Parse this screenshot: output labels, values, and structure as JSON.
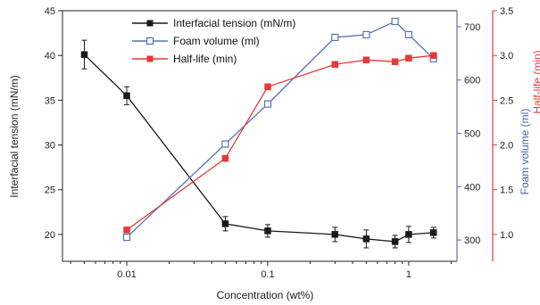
{
  "colors": {
    "interfacial": "#1a1a1a",
    "foam": "#5a72b6",
    "halflife": "#e53935"
  },
  "chart_data": {
    "type": "line",
    "xlabel": "Concentration (wt%)",
    "x_scale": "log",
    "xlim": [
      0.0035,
      2.2
    ],
    "x_ticks": [
      0.01,
      0.1,
      1
    ],
    "x_tick_labels": [
      "0.01",
      "0.1",
      "1"
    ],
    "axes": {
      "left": {
        "label": "Interfacial tension (mN/m)",
        "ylim": [
          17,
          45
        ],
        "ticks": [
          20,
          25,
          30,
          35,
          40,
          45
        ]
      },
      "right1": {
        "label": "Foam volume (ml)",
        "ylim": [
          260,
          730
        ],
        "ticks": [
          300,
          400,
          500,
          600,
          700
        ]
      },
      "right2": {
        "label": "Half-life (min)",
        "ylim": [
          0.7,
          3.5
        ],
        "ticks": [
          1.0,
          1.5,
          2.0,
          2.5,
          3.0,
          3.5
        ],
        "tick_labels": [
          "1.0",
          "1.5",
          "2.0",
          "2.5",
          "3.0",
          "3.5"
        ]
      }
    },
    "legend_position": "top-center",
    "series": [
      {
        "name": "Interfacial tension (mN/m)",
        "axis": "left",
        "marker": "filled-square",
        "x": [
          0.005,
          0.01,
          0.05,
          0.1,
          0.3,
          0.5,
          0.8,
          1.0,
          1.5
        ],
        "y": [
          40.1,
          35.5,
          21.2,
          20.4,
          20.0,
          19.5,
          19.2,
          20.0,
          20.2
        ],
        "error": [
          1.6,
          1.0,
          0.8,
          0.7,
          0.8,
          1.0,
          0.7,
          0.9,
          0.6
        ]
      },
      {
        "name": "Foam volume (ml)",
        "axis": "right1",
        "marker": "open-square",
        "x": [
          0.01,
          0.05,
          0.1,
          0.3,
          0.5,
          0.8,
          1.0,
          1.5
        ],
        "y": [
          305,
          480,
          555,
          680,
          685,
          710,
          685,
          640
        ]
      },
      {
        "name": "Half-life (min)",
        "axis": "right2",
        "marker": "filled-square",
        "x": [
          0.01,
          0.05,
          0.1,
          0.3,
          0.5,
          0.8,
          1.0,
          1.5
        ],
        "y": [
          1.05,
          1.85,
          2.65,
          2.9,
          2.95,
          2.93,
          2.97,
          3.0
        ]
      }
    ]
  }
}
